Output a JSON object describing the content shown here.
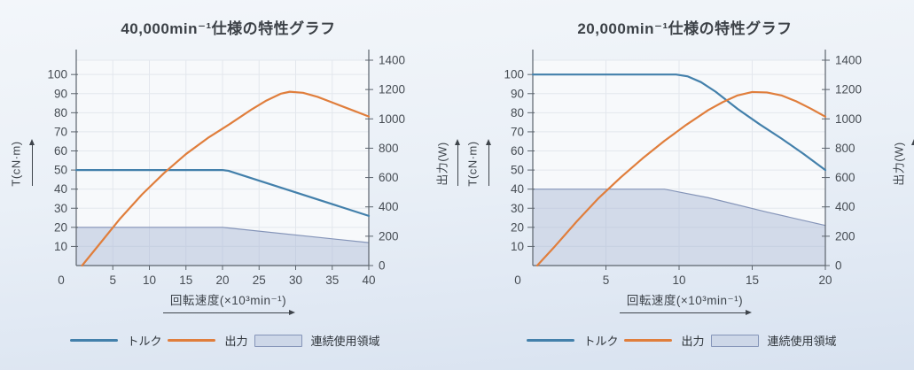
{
  "chart_data": [
    {
      "type": "line",
      "title": "40,000min⁻¹仕様の特性グラフ",
      "xlabel": "回転速度(×10³min⁻¹)",
      "ylabel_left": "T(cN·m)",
      "ylabel_right": "出力(W)",
      "xlim": [
        0,
        40
      ],
      "x_ticks": [
        0,
        5,
        10,
        15,
        20,
        25,
        30,
        35,
        40
      ],
      "left_axis": {
        "ticks": [
          10,
          20,
          30,
          40,
          50,
          60,
          70,
          80,
          90,
          100
        ],
        "max": 107.5
      },
      "right_axis": {
        "ticks": [
          0,
          200,
          400,
          600,
          800,
          1000,
          1200,
          1400
        ],
        "max": 1400
      },
      "colors": {
        "plot_bg": "#F7F9FB",
        "grid": "#E3E7ED",
        "axis": "#5C646D"
      },
      "series": [
        {
          "key": "torque",
          "name": "トルク",
          "axis": "left",
          "color": "#4380AB",
          "points": [
            [
              0,
              50
            ],
            [
              20,
              50
            ],
            [
              20.8,
              49.6
            ],
            [
              40,
              26
            ]
          ]
        },
        {
          "key": "output",
          "name": "出力",
          "axis": "right",
          "color": "#E07E3C",
          "points": [
            [
              0.8,
              0
            ],
            [
              3,
              135
            ],
            [
              6,
              320
            ],
            [
              9,
              485
            ],
            [
              12,
              630
            ],
            [
              15,
              760
            ],
            [
              18,
              870
            ],
            [
              21,
              965
            ],
            [
              24,
              1065
            ],
            [
              26,
              1125
            ],
            [
              28,
              1172
            ],
            [
              29.2,
              1185
            ],
            [
              31,
              1178
            ],
            [
              33,
              1150
            ],
            [
              35,
              1112
            ],
            [
              37.5,
              1064
            ],
            [
              40,
              1016
            ]
          ]
        },
        {
          "key": "region",
          "name": "連続使用領域",
          "axis": "left",
          "type": "area",
          "fill": "#A9B8D6",
          "fill_opacity": 0.48,
          "stroke": "#8494B8",
          "points": [
            [
              0,
              20
            ],
            [
              20,
              20
            ],
            [
              40,
              12
            ]
          ]
        }
      ]
    },
    {
      "type": "line",
      "title": "20,000min⁻¹仕様の特性グラフ",
      "xlabel": "回転速度(×10³min⁻¹)",
      "ylabel_left": "T(cN·m)",
      "ylabel_right": "出力(W)",
      "xlim": [
        0,
        20
      ],
      "x_ticks": [
        0,
        5,
        10,
        15,
        20
      ],
      "left_axis": {
        "ticks": [
          10,
          20,
          30,
          40,
          50,
          60,
          70,
          80,
          90,
          100
        ],
        "max": 107.5
      },
      "right_axis": {
        "ticks": [
          0,
          200,
          400,
          600,
          800,
          1000,
          1200,
          1400
        ],
        "max": 1400
      },
      "colors": {
        "plot_bg": "#F7F9FB",
        "grid": "#E3E7ED",
        "axis": "#5C646D"
      },
      "series": [
        {
          "key": "torque",
          "name": "トルク",
          "axis": "left",
          "color": "#4380AB",
          "points": [
            [
              0,
              100
            ],
            [
              9.8,
              100
            ],
            [
              10.6,
              99
            ],
            [
              11.5,
              96
            ],
            [
              12.5,
              91
            ],
            [
              14,
              82
            ],
            [
              15.5,
              74
            ],
            [
              17,
              66.5
            ],
            [
              18.5,
              58.5
            ],
            [
              20,
              50
            ]
          ]
        },
        {
          "key": "output",
          "name": "出力",
          "axis": "right",
          "color": "#E07E3C",
          "points": [
            [
              0.3,
              0
            ],
            [
              1.5,
              130
            ],
            [
              3,
              300
            ],
            [
              4.5,
              460
            ],
            [
              6,
              600
            ],
            [
              7.5,
              730
            ],
            [
              9,
              850
            ],
            [
              10.5,
              960
            ],
            [
              12,
              1060
            ],
            [
              13,
              1115
            ],
            [
              14,
              1160
            ],
            [
              15,
              1183
            ],
            [
              16,
              1180
            ],
            [
              17,
              1160
            ],
            [
              18,
              1120
            ],
            [
              19,
              1070
            ],
            [
              20,
              1015
            ]
          ]
        },
        {
          "key": "region",
          "name": "連続使用領域",
          "axis": "left",
          "type": "area",
          "fill": "#A9B8D6",
          "fill_opacity": 0.48,
          "stroke": "#8494B8",
          "points": [
            [
              0,
              40
            ],
            [
              9,
              40
            ],
            [
              10,
              38.5
            ],
            [
              12,
              35.5
            ],
            [
              16,
              28
            ],
            [
              20,
              21
            ]
          ]
        }
      ]
    }
  ]
}
